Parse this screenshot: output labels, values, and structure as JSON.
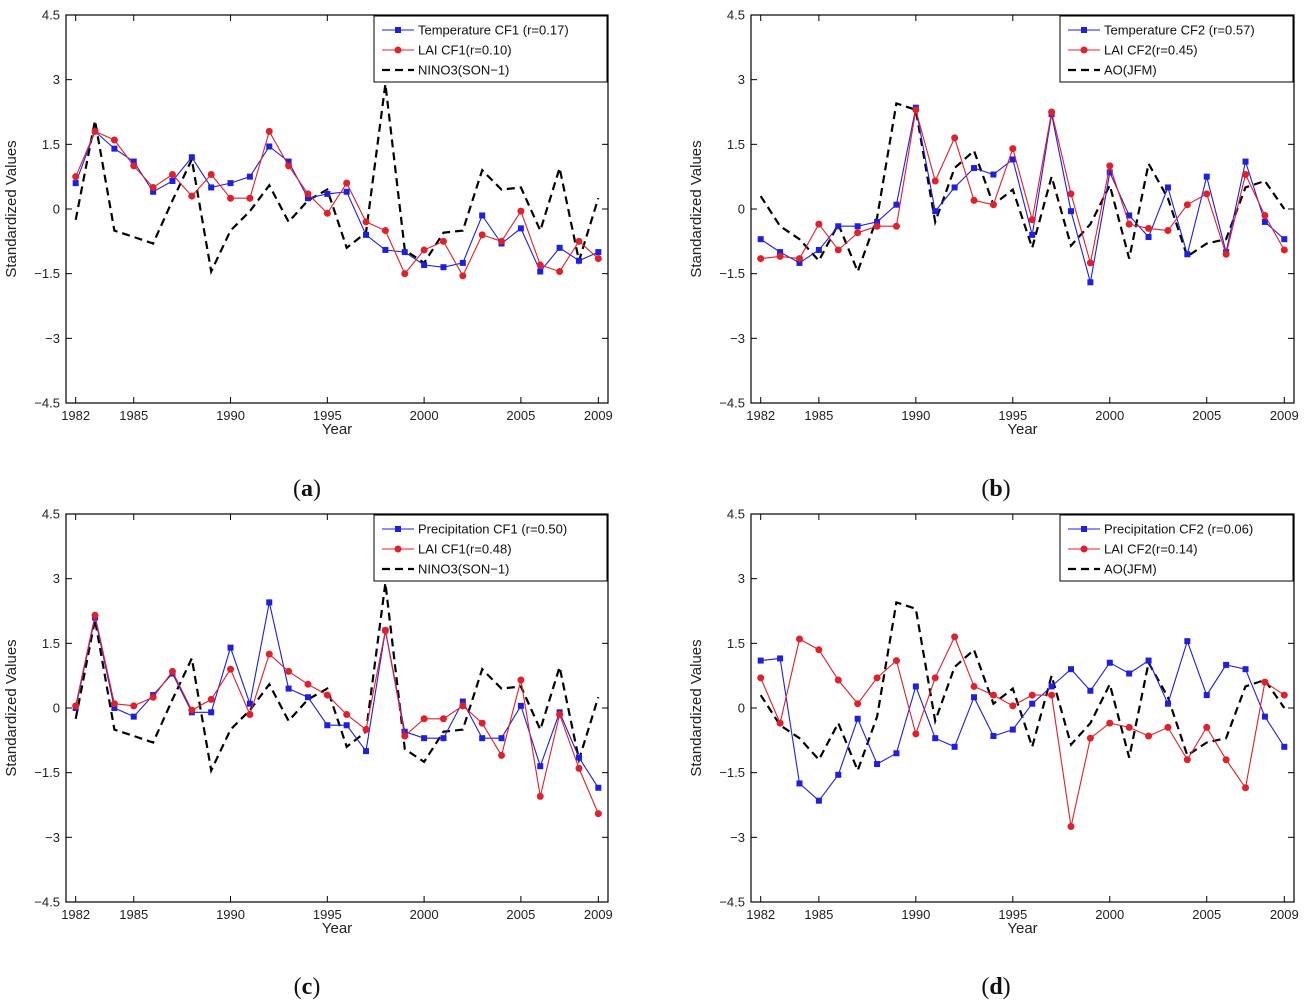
{
  "colors": {
    "series1": "#1f1fe0",
    "series2": "#e0202a",
    "index": "#000000",
    "axis": "#000000"
  },
  "chart_data": [
    {
      "type": "line",
      "panel": "a",
      "xlabel": "Year",
      "ylabel": "Standardized Values",
      "ylim": [
        -4.5,
        4.5
      ],
      "yticks": [
        "−4.5",
        "−3",
        "−1.5",
        "0",
        "1.5",
        "3",
        "4.5"
      ],
      "xticks": [
        "1982",
        "1985",
        "1990",
        "1995",
        "2000",
        "2005",
        "2009"
      ],
      "x": [
        1982,
        1983,
        1984,
        1985,
        1986,
        1987,
        1988,
        1989,
        1990,
        1991,
        1992,
        1993,
        1994,
        1995,
        1996,
        1997,
        1998,
        1999,
        2000,
        2001,
        2002,
        2003,
        2004,
        2005,
        2006,
        2007,
        2008,
        2009
      ],
      "series": [
        {
          "name": "Temperature CF1 (r=0.17)",
          "style": "blue-square",
          "values": [
            0.6,
            1.8,
            1.4,
            1.1,
            0.4,
            0.65,
            1.2,
            0.5,
            0.6,
            0.75,
            1.45,
            1.1,
            0.25,
            0.35,
            0.4,
            -0.6,
            -0.95,
            -1.0,
            -1.3,
            -1.35,
            -1.25,
            -0.15,
            -0.8,
            -0.45,
            -1.45,
            -0.9,
            -1.2,
            -1.0
          ]
        },
        {
          "name": "LAI CF1(r=0.10)",
          "style": "red-circle",
          "values": [
            0.75,
            1.8,
            1.6,
            1.0,
            0.5,
            0.8,
            0.3,
            0.8,
            0.25,
            0.25,
            1.8,
            1.0,
            0.35,
            -0.1,
            0.6,
            -0.3,
            -0.5,
            -1.5,
            -0.95,
            -0.75,
            -1.55,
            -0.6,
            -0.75,
            -0.05,
            -1.3,
            -1.45,
            -0.75,
            -1.15
          ]
        },
        {
          "name": "NINO3(SON−1)",
          "style": "black-dashed",
          "values": [
            -0.25,
            2.05,
            -0.5,
            -0.65,
            -0.8,
            0.2,
            1.15,
            -1.45,
            -0.5,
            -0.05,
            0.55,
            -0.3,
            0.2,
            0.45,
            -0.9,
            -0.55,
            2.9,
            -0.95,
            -1.25,
            -0.55,
            -0.5,
            0.9,
            0.45,
            0.5,
            -0.5,
            0.95,
            -1.2,
            0.25
          ]
        }
      ]
    },
    {
      "type": "line",
      "panel": "b",
      "xlabel": "Year",
      "ylabel": "Standardized Values",
      "ylim": [
        -4.5,
        4.5
      ],
      "yticks": [
        "−4.5",
        "−3",
        "−1.5",
        "0",
        "1.5",
        "3",
        "4.5"
      ],
      "xticks": [
        "1982",
        "1985",
        "1990",
        "1995",
        "2000",
        "2005",
        "2009"
      ],
      "x": [
        1982,
        1983,
        1984,
        1985,
        1986,
        1987,
        1988,
        1989,
        1990,
        1991,
        1992,
        1993,
        1994,
        1995,
        1996,
        1997,
        1998,
        1999,
        2000,
        2001,
        2002,
        2003,
        2004,
        2005,
        2006,
        2007,
        2008,
        2009
      ],
      "series": [
        {
          "name": "Temperature CF2 (r=0.57)",
          "style": "blue-square",
          "values": [
            -0.7,
            -1.0,
            -1.25,
            -0.95,
            -0.4,
            -0.4,
            -0.3,
            0.1,
            2.35,
            -0.05,
            0.5,
            0.95,
            0.8,
            1.15,
            -0.6,
            2.2,
            -0.05,
            -1.7,
            0.85,
            -0.15,
            -0.65,
            0.5,
            -1.05,
            0.75,
            -1.0,
            1.1,
            -0.3,
            -0.7
          ]
        },
        {
          "name": "LAI CF2(r=0.45)",
          "style": "red-circle",
          "values": [
            -1.15,
            -1.1,
            -1.15,
            -0.35,
            -0.95,
            -0.55,
            -0.4,
            -0.4,
            2.3,
            0.65,
            1.65,
            0.2,
            0.1,
            1.4,
            -0.25,
            2.25,
            0.35,
            -1.25,
            1.0,
            -0.35,
            -0.45,
            -0.5,
            0.1,
            0.35,
            -1.05,
            0.8,
            -0.15,
            -0.95
          ]
        },
        {
          "name": "AO(JFM)",
          "style": "black-dashed",
          "values": [
            0.3,
            -0.4,
            -0.7,
            -1.2,
            -0.35,
            -1.45,
            -0.2,
            2.45,
            2.3,
            -0.3,
            0.95,
            1.35,
            0.1,
            0.45,
            -0.9,
            0.75,
            -0.85,
            -0.35,
            0.55,
            -1.15,
            1.05,
            0.25,
            -1.1,
            -0.8,
            -0.7,
            0.5,
            0.65,
            0.0
          ]
        }
      ]
    },
    {
      "type": "line",
      "panel": "c",
      "xlabel": "Year",
      "ylabel": "Standardized Values",
      "ylim": [
        -4.5,
        4.5
      ],
      "yticks": [
        "−4.5",
        "−3",
        "−1.5",
        "0",
        "1.5",
        "3",
        "4.5"
      ],
      "xticks": [
        "1982",
        "1985",
        "1990",
        "1995",
        "2000",
        "2005",
        "2009"
      ],
      "x": [
        1982,
        1983,
        1984,
        1985,
        1986,
        1987,
        1988,
        1989,
        1990,
        1991,
        1992,
        1993,
        1994,
        1995,
        1996,
        1997,
        1998,
        1999,
        2000,
        2001,
        2002,
        2003,
        2004,
        2005,
        2006,
        2007,
        2008,
        2009
      ],
      "series": [
        {
          "name": "Precipitation CF1 (r=0.50)",
          "style": "blue-square",
          "values": [
            0.0,
            2.1,
            0.0,
            -0.2,
            0.3,
            0.8,
            -0.1,
            -0.1,
            1.4,
            0.1,
            2.45,
            0.45,
            0.25,
            -0.4,
            -0.4,
            -1.0,
            1.8,
            -0.55,
            -0.7,
            -0.7,
            0.15,
            -0.7,
            -0.7,
            0.05,
            -1.35,
            -0.1,
            -1.15,
            -1.85
          ]
        },
        {
          "name": "LAI CF1(r=0.48)",
          "style": "red-circle",
          "values": [
            0.05,
            2.15,
            0.1,
            0.05,
            0.25,
            0.85,
            -0.05,
            0.2,
            0.9,
            -0.15,
            1.25,
            0.85,
            0.55,
            0.3,
            -0.15,
            -0.5,
            1.8,
            -0.65,
            -0.25,
            -0.25,
            0.05,
            -0.35,
            -1.1,
            0.65,
            -2.05,
            -0.15,
            -1.4,
            -2.45
          ]
        },
        {
          "name": "NINO3(SON−1)",
          "style": "black-dashed",
          "values": [
            -0.25,
            2.05,
            -0.5,
            -0.65,
            -0.8,
            0.2,
            1.15,
            -1.45,
            -0.5,
            -0.05,
            0.55,
            -0.3,
            0.2,
            0.45,
            -0.9,
            -0.55,
            2.9,
            -0.95,
            -1.25,
            -0.55,
            -0.5,
            0.9,
            0.45,
            0.5,
            -0.5,
            0.95,
            -1.2,
            0.25
          ]
        }
      ]
    },
    {
      "type": "line",
      "panel": "d",
      "xlabel": "Year",
      "ylabel": "Standardized Values",
      "ylim": [
        -4.5,
        4.5
      ],
      "yticks": [
        "−4.5",
        "−3",
        "−1.5",
        "0",
        "1.5",
        "3",
        "4.5"
      ],
      "xticks": [
        "1982",
        "1985",
        "1990",
        "1995",
        "2000",
        "2005",
        "2009"
      ],
      "x": [
        1982,
        1983,
        1984,
        1985,
        1986,
        1987,
        1988,
        1989,
        1990,
        1991,
        1992,
        1993,
        1994,
        1995,
        1996,
        1997,
        1998,
        1999,
        2000,
        2001,
        2002,
        2003,
        2004,
        2005,
        2006,
        2007,
        2008,
        2009
      ],
      "series": [
        {
          "name": "Precipitation CF2 (r=0.06)",
          "style": "blue-square",
          "values": [
            1.1,
            1.15,
            -1.75,
            -2.15,
            -1.55,
            -0.25,
            -1.3,
            -1.05,
            0.5,
            -0.7,
            -0.9,
            0.25,
            -0.65,
            -0.5,
            0.1,
            0.5,
            0.9,
            0.4,
            1.05,
            0.8,
            1.1,
            0.1,
            1.55,
            0.3,
            1.0,
            0.9,
            -0.2,
            -0.9
          ]
        },
        {
          "name": "LAI CF2(r=0.14)",
          "style": "red-circle",
          "values": [
            0.7,
            -0.35,
            1.6,
            1.35,
            0.65,
            0.1,
            0.7,
            1.1,
            -0.6,
            0.7,
            1.65,
            0.5,
            0.3,
            0.05,
            0.3,
            0.3,
            -2.75,
            -0.7,
            -0.35,
            -0.45,
            -0.65,
            -0.45,
            -1.2,
            -0.45,
            -1.2,
            -1.85,
            0.6,
            0.3
          ]
        },
        {
          "name": "AO(JFM)",
          "style": "black-dashed",
          "values": [
            0.3,
            -0.4,
            -0.7,
            -1.2,
            -0.35,
            -1.45,
            -0.2,
            2.45,
            2.3,
            -0.3,
            0.95,
            1.35,
            0.1,
            0.45,
            -0.9,
            0.75,
            -0.85,
            -0.35,
            0.55,
            -1.15,
            1.05,
            0.25,
            -1.1,
            -0.8,
            -0.7,
            0.5,
            0.65,
            0.0
          ]
        }
      ]
    }
  ],
  "panel_labels": [
    {
      "open": "(",
      "letter": "a",
      "close": ")"
    },
    {
      "open": "(",
      "letter": "b",
      "close": ")"
    },
    {
      "open": "(",
      "letter": "c",
      "close": ")"
    },
    {
      "open": "(",
      "letter": "d",
      "close": ")"
    }
  ]
}
